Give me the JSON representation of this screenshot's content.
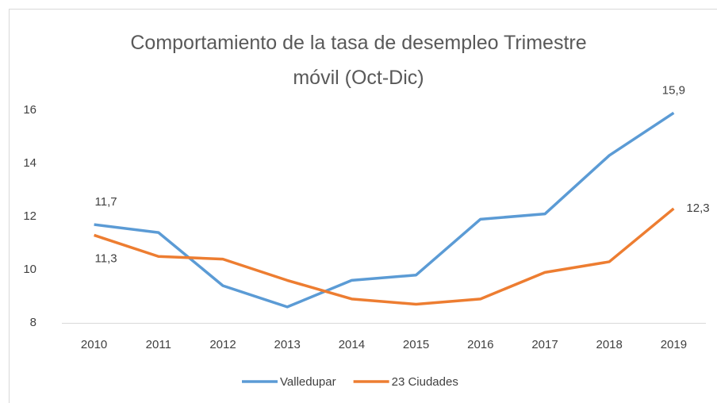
{
  "chart_data": {
    "type": "line",
    "title": "Comportamiento de la tasa de desempleo Trimestre móvil (Oct-Dic)",
    "categories": [
      "2010",
      "2011",
      "2012",
      "2013",
      "2014",
      "2015",
      "2016",
      "2017",
      "2018",
      "2019"
    ],
    "series": [
      {
        "name": "Valledupar",
        "color": "#5b9bd5",
        "values": [
          11.7,
          11.4,
          9.4,
          8.6,
          9.6,
          9.8,
          11.9,
          12.1,
          14.3,
          15.9
        ],
        "value_labels": [
          "11,7",
          null,
          null,
          null,
          null,
          null,
          null,
          null,
          null,
          "15,9"
        ]
      },
      {
        "name": "23 Ciudades",
        "color": "#ed7d31",
        "values": [
          11.3,
          10.5,
          10.4,
          9.6,
          8.9,
          8.7,
          8.9,
          9.9,
          10.3,
          12.3
        ],
        "value_labels": [
          "11,3",
          null,
          null,
          null,
          null,
          null,
          null,
          null,
          null,
          "12,3"
        ]
      }
    ],
    "ylim": [
      8,
      16
    ],
    "yticks": [
      8,
      10,
      12,
      14,
      16
    ],
    "grid": false,
    "legend": "bottom"
  }
}
